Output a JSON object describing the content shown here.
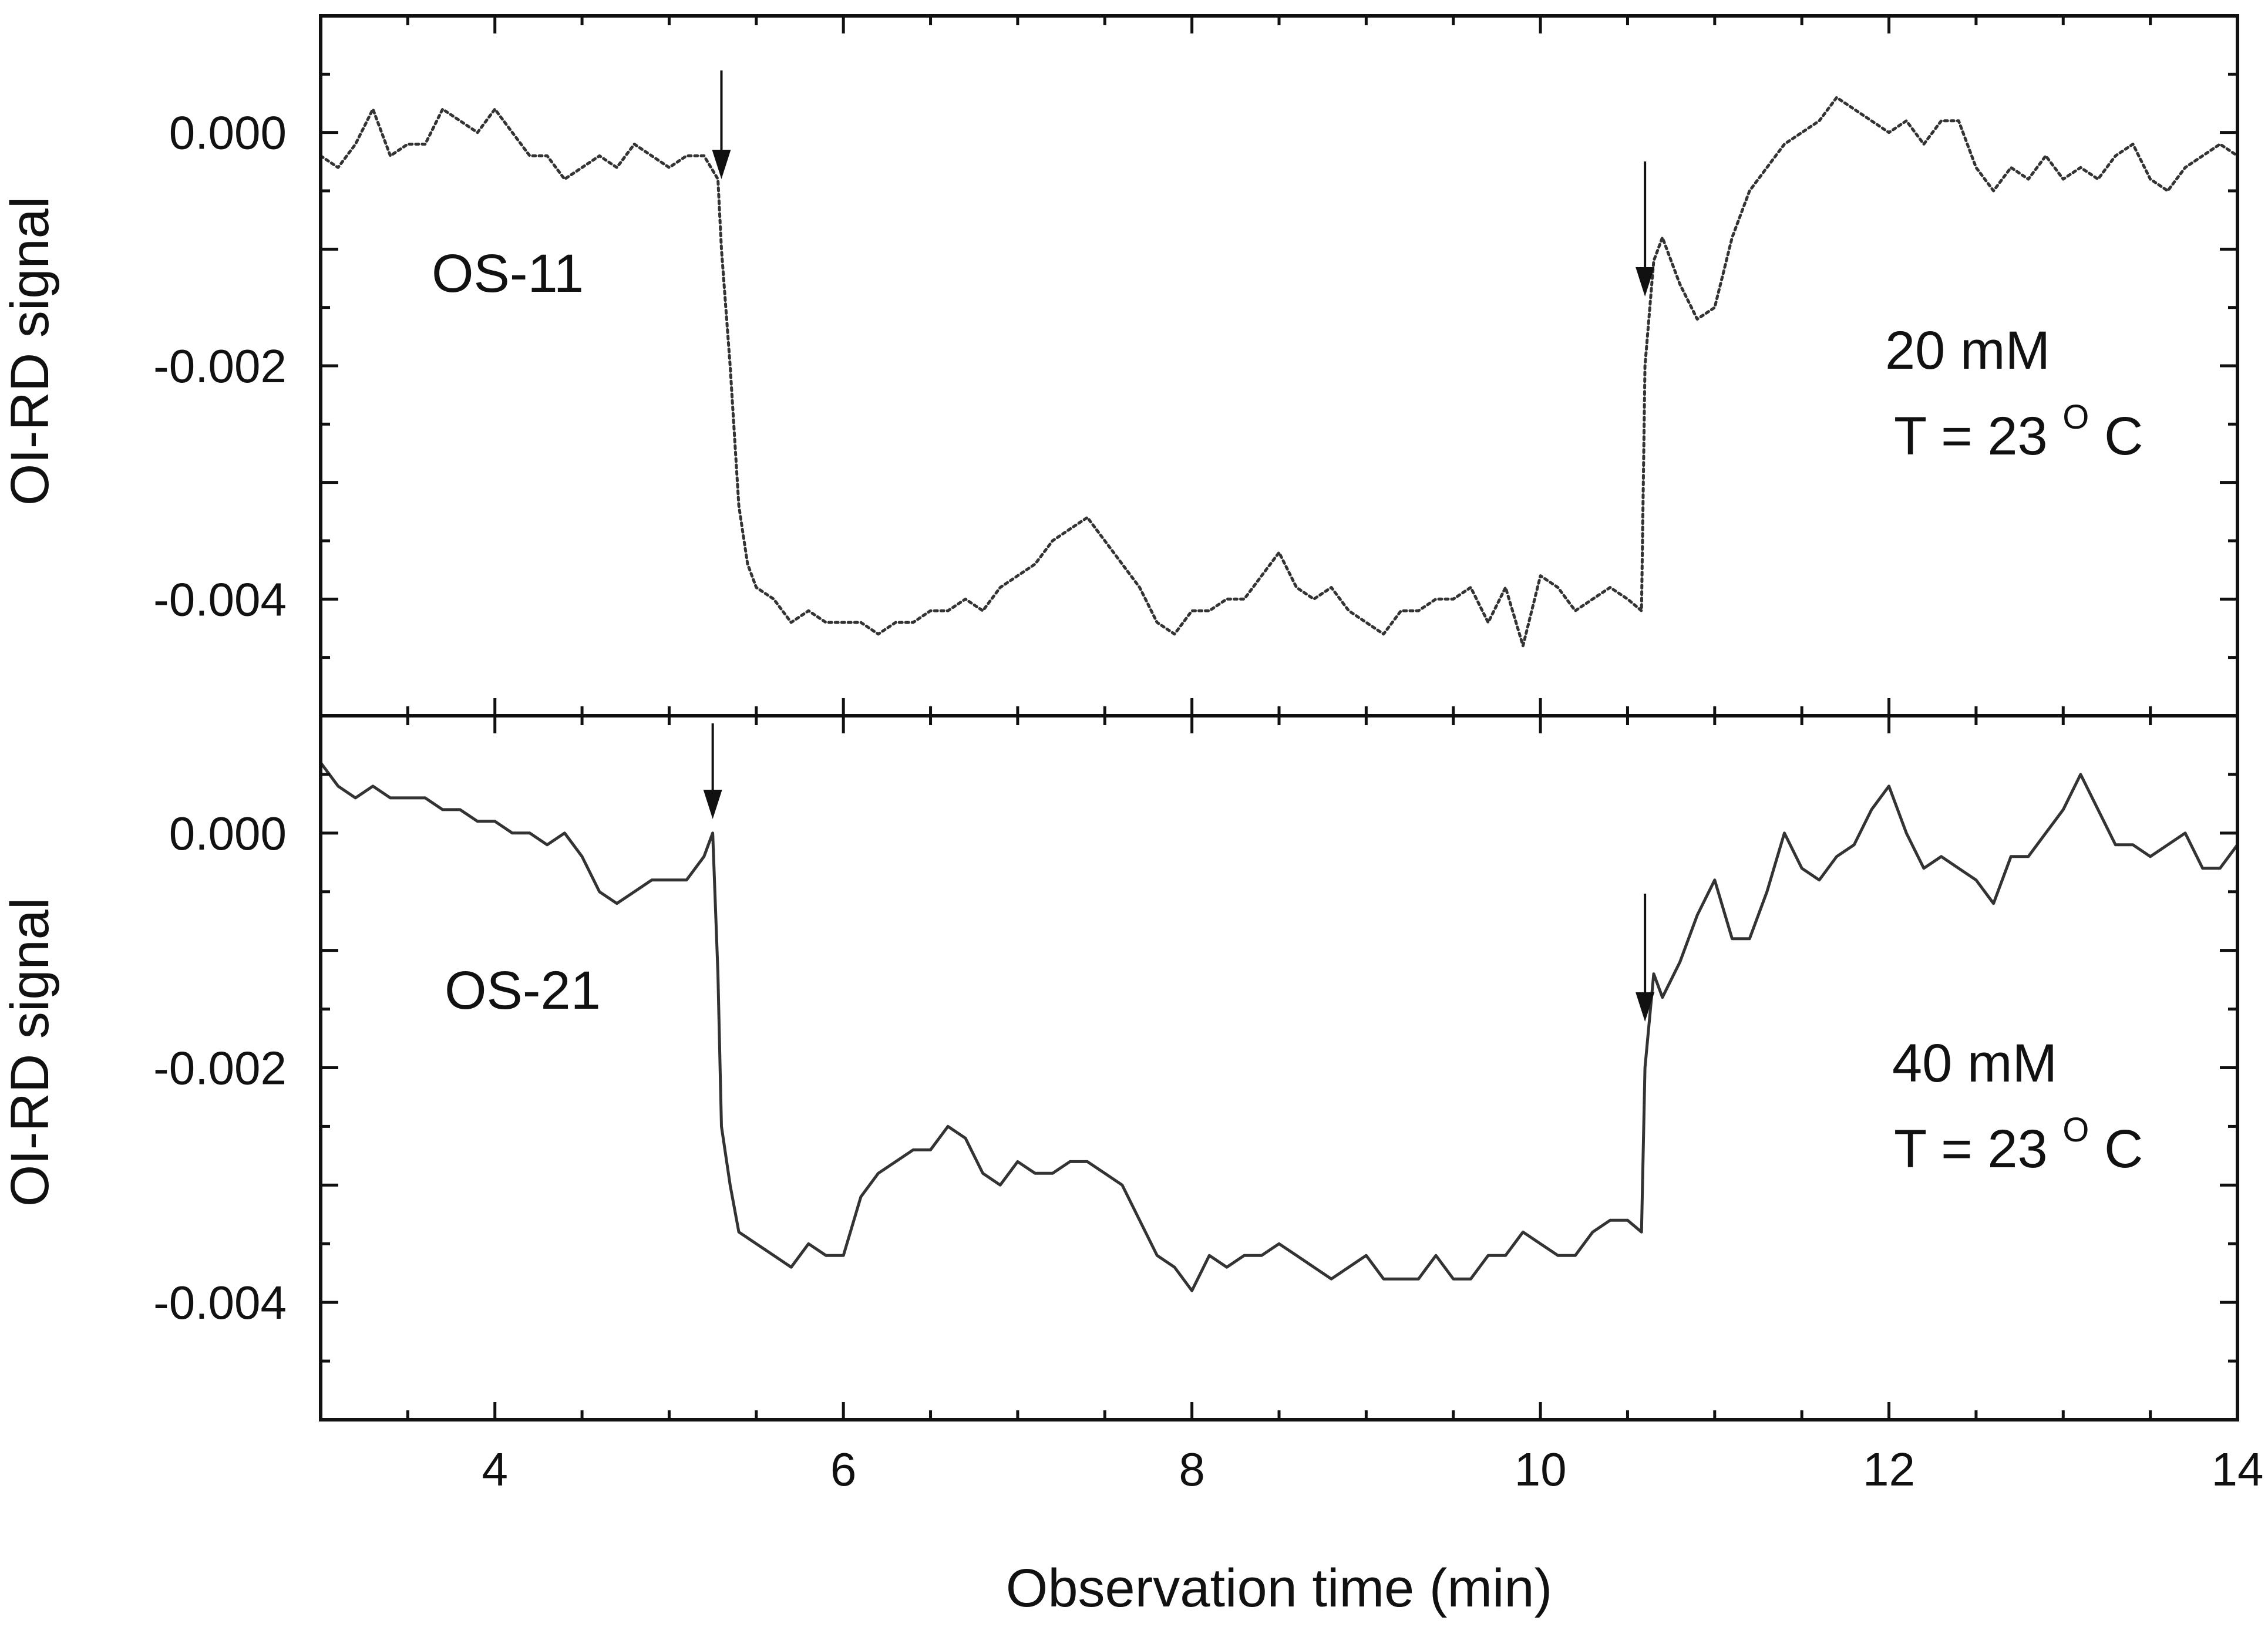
{
  "chart_data": [
    {
      "type": "line",
      "ylabel": "OI-RD signal",
      "xlim": [
        3,
        14
      ],
      "ylim": [
        -0.005,
        0.001
      ],
      "yticks": [
        "0.000",
        "-0.002",
        "-0.004"
      ],
      "yticks_values": [
        0.0,
        -0.002,
        -0.004
      ],
      "annotations": {
        "sample": "OS-11",
        "concentration": "20 mM",
        "temp_prefix": "T = 23",
        "temp_degree": "O",
        "temp_unit": "C"
      },
      "markers": [
        5.3,
        10.6
      ],
      "series": [
        {
          "line_style": "dotted",
          "x": [
            3.0,
            3.1,
            3.2,
            3.3,
            3.4,
            3.5,
            3.6,
            3.7,
            3.8,
            3.9,
            4.0,
            4.1,
            4.2,
            4.3,
            4.4,
            4.5,
            4.6,
            4.7,
            4.8,
            4.9,
            5.0,
            5.1,
            5.2,
            5.28,
            5.3,
            5.35,
            5.4,
            5.45,
            5.5,
            5.6,
            5.7,
            5.8,
            5.9,
            6.0,
            6.1,
            6.2,
            6.3,
            6.4,
            6.5,
            6.6,
            6.7,
            6.8,
            6.9,
            7.0,
            7.1,
            7.2,
            7.3,
            7.4,
            7.5,
            7.6,
            7.7,
            7.8,
            7.9,
            8.0,
            8.1,
            8.2,
            8.3,
            8.4,
            8.5,
            8.6,
            8.7,
            8.8,
            8.9,
            9.0,
            9.1,
            9.2,
            9.3,
            9.4,
            9.5,
            9.6,
            9.7,
            9.8,
            9.9,
            10.0,
            10.1,
            10.2,
            10.3,
            10.4,
            10.5,
            10.58,
            10.6,
            10.65,
            10.7,
            10.8,
            10.9,
            11.0,
            11.1,
            11.2,
            11.3,
            11.4,
            11.5,
            11.6,
            11.7,
            11.8,
            11.9,
            12.0,
            12.1,
            12.2,
            12.3,
            12.4,
            12.5,
            12.6,
            12.7,
            12.8,
            12.9,
            13.0,
            13.1,
            13.2,
            13.3,
            13.4,
            13.5,
            13.6,
            13.7,
            13.8,
            13.9,
            14.0
          ],
          "y": [
            -0.0002,
            -0.0003,
            -0.0001,
            0.0002,
            -0.0002,
            -0.0001,
            -0.0001,
            0.0002,
            0.0001,
            0.0,
            0.0002,
            0.0,
            -0.0002,
            -0.0002,
            -0.0004,
            -0.0003,
            -0.0002,
            -0.0003,
            -0.0001,
            -0.0002,
            -0.0003,
            -0.0002,
            -0.0002,
            -0.0004,
            -0.001,
            -0.002,
            -0.0032,
            -0.0037,
            -0.0039,
            -0.004,
            -0.0042,
            -0.0041,
            -0.0042,
            -0.0042,
            -0.0042,
            -0.0043,
            -0.0042,
            -0.0042,
            -0.0041,
            -0.0041,
            -0.004,
            -0.0041,
            -0.0039,
            -0.0038,
            -0.0037,
            -0.0035,
            -0.0034,
            -0.0033,
            -0.0035,
            -0.0037,
            -0.0039,
            -0.0042,
            -0.0043,
            -0.0041,
            -0.0041,
            -0.004,
            -0.004,
            -0.0038,
            -0.0036,
            -0.0039,
            -0.004,
            -0.0039,
            -0.0041,
            -0.0042,
            -0.0043,
            -0.0041,
            -0.0041,
            -0.004,
            -0.004,
            -0.0039,
            -0.0042,
            -0.0039,
            -0.0044,
            -0.0038,
            -0.0039,
            -0.0041,
            -0.004,
            -0.0039,
            -0.004,
            -0.0041,
            -0.002,
            -0.0011,
            -0.0009,
            -0.0013,
            -0.0016,
            -0.0015,
            -0.0009,
            -0.0005,
            -0.0003,
            -0.0001,
            0.0,
            0.0001,
            0.0003,
            0.0002,
            0.0001,
            0.0,
            0.0001,
            -0.0001,
            0.0001,
            0.0001,
            -0.0003,
            -0.0005,
            -0.0003,
            -0.0004,
            -0.0002,
            -0.0004,
            -0.0003,
            -0.0004,
            -0.0002,
            -0.0001,
            -0.0004,
            -0.0005,
            -0.0003,
            -0.0002,
            -0.0001,
            -0.0002
          ]
        }
      ]
    },
    {
      "type": "line",
      "xlabel": "Observation time (min)",
      "ylabel": "OI-RD signal",
      "xlim": [
        3,
        14
      ],
      "ylim": [
        -0.005,
        0.001
      ],
      "xticks": [
        "4",
        "6",
        "8",
        "10",
        "12",
        "14"
      ],
      "xticks_values": [
        4,
        6,
        8,
        10,
        12,
        14
      ],
      "yticks": [
        "0.000",
        "-0.002",
        "-0.004"
      ],
      "yticks_values": [
        0.0,
        -0.002,
        -0.004
      ],
      "annotations": {
        "sample": "OS-21",
        "concentration": "40 mM",
        "temp_prefix": "T = 23",
        "temp_degree": "O",
        "temp_unit": "C"
      },
      "markers": [
        5.25,
        10.6
      ],
      "series": [
        {
          "line_style": "solid",
          "x": [
            3.0,
            3.1,
            3.2,
            3.3,
            3.4,
            3.5,
            3.6,
            3.7,
            3.8,
            3.9,
            4.0,
            4.1,
            4.2,
            4.3,
            4.4,
            4.5,
            4.6,
            4.7,
            4.8,
            4.9,
            5.0,
            5.1,
            5.2,
            5.25,
            5.28,
            5.3,
            5.35,
            5.4,
            5.5,
            5.6,
            5.7,
            5.8,
            5.9,
            6.0,
            6.1,
            6.2,
            6.3,
            6.4,
            6.5,
            6.6,
            6.7,
            6.8,
            6.9,
            7.0,
            7.1,
            7.2,
            7.3,
            7.4,
            7.5,
            7.6,
            7.7,
            7.8,
            7.9,
            8.0,
            8.1,
            8.2,
            8.3,
            8.4,
            8.5,
            8.6,
            8.7,
            8.8,
            8.9,
            9.0,
            9.1,
            9.2,
            9.3,
            9.4,
            9.5,
            9.6,
            9.7,
            9.8,
            9.9,
            10.0,
            10.1,
            10.2,
            10.3,
            10.4,
            10.5,
            10.58,
            10.6,
            10.65,
            10.7,
            10.8,
            10.9,
            11.0,
            11.1,
            11.2,
            11.3,
            11.4,
            11.5,
            11.6,
            11.7,
            11.8,
            11.9,
            12.0,
            12.1,
            12.2,
            12.3,
            12.4,
            12.5,
            12.6,
            12.7,
            12.8,
            12.9,
            13.0,
            13.1,
            13.2,
            13.3,
            13.4,
            13.5,
            13.6,
            13.7,
            13.8,
            13.9,
            14.0
          ],
          "y": [
            0.0006,
            0.0004,
            0.0003,
            0.0004,
            0.0003,
            0.0003,
            0.0003,
            0.0002,
            0.0002,
            0.0001,
            0.0001,
            0.0,
            0.0,
            -0.0001,
            0.0,
            -0.0002,
            -0.0005,
            -0.0006,
            -0.0005,
            -0.0004,
            -0.0004,
            -0.0004,
            -0.0002,
            0.0,
            -0.0012,
            -0.0025,
            -0.003,
            -0.0034,
            -0.0035,
            -0.0036,
            -0.0037,
            -0.0035,
            -0.0036,
            -0.0036,
            -0.0031,
            -0.0029,
            -0.0028,
            -0.0027,
            -0.0027,
            -0.0025,
            -0.0026,
            -0.0029,
            -0.003,
            -0.0028,
            -0.0029,
            -0.0029,
            -0.0028,
            -0.0028,
            -0.0029,
            -0.003,
            -0.0033,
            -0.0036,
            -0.0037,
            -0.0039,
            -0.0036,
            -0.0037,
            -0.0036,
            -0.0036,
            -0.0035,
            -0.0036,
            -0.0037,
            -0.0038,
            -0.0037,
            -0.0036,
            -0.0038,
            -0.0038,
            -0.0038,
            -0.0036,
            -0.0038,
            -0.0038,
            -0.0036,
            -0.0036,
            -0.0034,
            -0.0035,
            -0.0036,
            -0.0036,
            -0.0034,
            -0.0033,
            -0.0033,
            -0.0034,
            -0.002,
            -0.0012,
            -0.0014,
            -0.0011,
            -0.0007,
            -0.0004,
            -0.0009,
            -0.0009,
            -0.0005,
            0.0,
            -0.0003,
            -0.0004,
            -0.0002,
            -0.0001,
            0.0002,
            0.0004,
            0.0,
            -0.0003,
            -0.0002,
            -0.0003,
            -0.0004,
            -0.0006,
            -0.0002,
            -0.0002,
            0.0,
            0.0002,
            0.0005,
            0.0002,
            -0.0001,
            -0.0001,
            -0.0002,
            -0.0001,
            0.0,
            -0.0003,
            -0.0003,
            -0.0001
          ]
        }
      ]
    }
  ]
}
